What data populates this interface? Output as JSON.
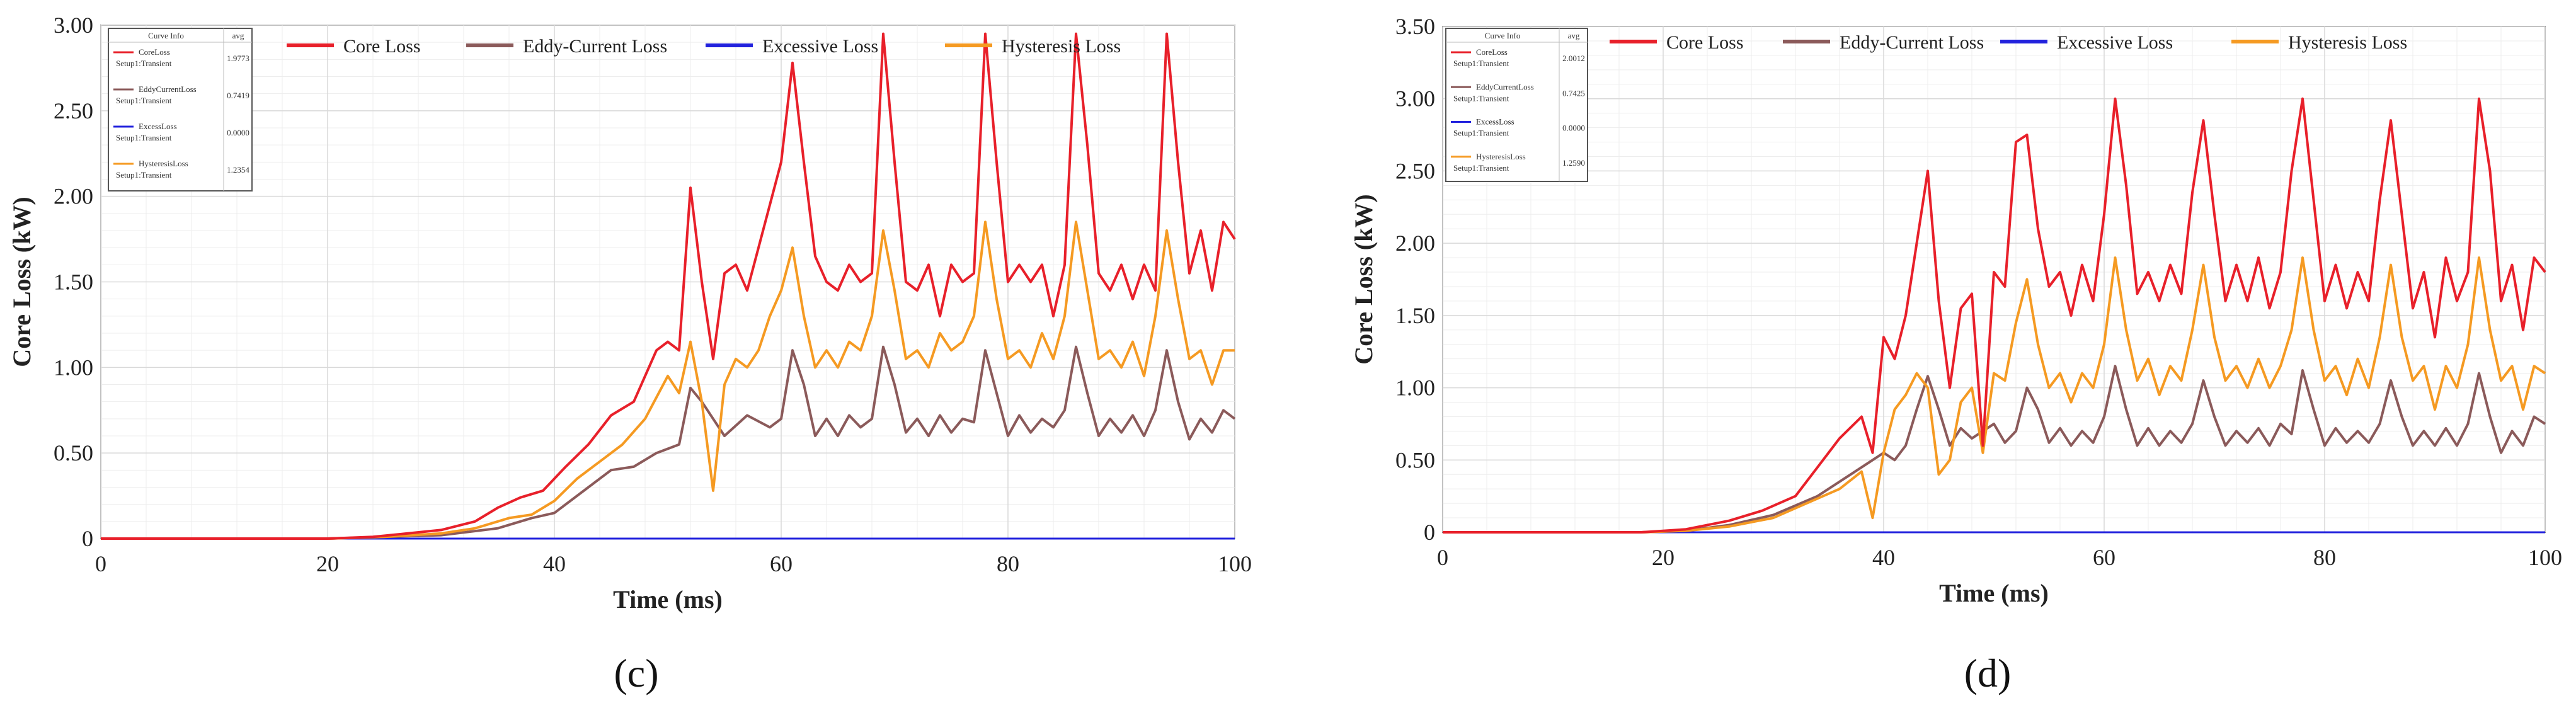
{
  "colors": {
    "core": "#e8202a",
    "eddy": "#8b5a5a",
    "excess": "#2222dd",
    "hyst": "#f59a22",
    "grid": "#d9d9d9",
    "axis": "#7a7a7a",
    "legend_border": "#555555"
  },
  "chart_data": [
    {
      "id": "c",
      "type": "line",
      "panel_label": "(c)",
      "xlabel": "Time (ms)",
      "ylabel": "Core Loss (kW)",
      "xlim": [
        0,
        100
      ],
      "ylim": [
        0,
        3.0
      ],
      "xticks": [
        0,
        20,
        40,
        60,
        80,
        100
      ],
      "yticks": [
        0,
        0.5,
        1.0,
        1.5,
        2.0,
        2.5,
        3.0
      ],
      "ytick_labels": [
        "0",
        "0.50",
        "1.00",
        "1.50",
        "2.00",
        "2.50",
        "3.00"
      ],
      "legend": [
        "Core Loss",
        "Eddy-Current Loss",
        "Excessive Loss",
        "Hysteresis Loss"
      ],
      "info_box": {
        "header": [
          "Curve Info",
          "avg"
        ],
        "rows": [
          {
            "name": "CoreLoss",
            "setup": "Setup1:Transient",
            "avg": "1.9773"
          },
          {
            "name": "EddyCurrentLoss",
            "setup": "Setup1:Transient",
            "avg": "0.7419"
          },
          {
            "name": "ExcessLoss",
            "setup": "Setup1:Transient",
            "avg": "0.0000"
          },
          {
            "name": "HysteresisLoss",
            "setup": "Setup1:Transient",
            "avg": "1.2354"
          }
        ]
      },
      "series": [
        {
          "name": "Core Loss",
          "key": "core",
          "x": [
            0,
            20,
            24,
            27,
            30,
            33,
            35,
            37,
            39,
            41,
            43,
            45,
            47,
            49,
            50,
            51,
            52,
            53,
            54,
            55,
            56,
            57,
            58,
            60,
            61,
            62,
            63,
            64,
            65,
            66,
            67,
            68,
            69,
            70,
            71,
            72,
            73,
            74,
            75,
            76,
            77,
            78,
            79,
            80,
            81,
            82,
            83,
            84,
            85,
            86,
            87,
            88,
            89,
            90,
            91,
            92,
            93,
            94,
            95,
            96,
            97,
            98,
            99,
            100
          ],
          "y": [
            0,
            0,
            0.01,
            0.03,
            0.05,
            0.1,
            0.18,
            0.24,
            0.28,
            0.42,
            0.55,
            0.72,
            0.8,
            1.1,
            1.15,
            1.1,
            2.05,
            1.5,
            1.05,
            1.55,
            1.6,
            1.45,
            1.7,
            2.2,
            2.78,
            2.2,
            1.65,
            1.5,
            1.45,
            1.6,
            1.5,
            1.55,
            2.95,
            2.2,
            1.5,
            1.45,
            1.6,
            1.3,
            1.6,
            1.5,
            1.55,
            2.95,
            2.2,
            1.5,
            1.6,
            1.5,
            1.6,
            1.3,
            1.6,
            2.95,
            2.3,
            1.55,
            1.45,
            1.6,
            1.4,
            1.6,
            1.45,
            2.95,
            2.2,
            1.55,
            1.8,
            1.45,
            1.85,
            1.75
          ]
        },
        {
          "name": "Eddy-Current Loss",
          "key": "eddy",
          "x": [
            0,
            20,
            25,
            30,
            35,
            38,
            40,
            43,
            45,
            47,
            49,
            51,
            52,
            53,
            55,
            57,
            59,
            60,
            61,
            62,
            63,
            64,
            65,
            66,
            67,
            68,
            69,
            70,
            71,
            72,
            73,
            74,
            75,
            76,
            77,
            78,
            79,
            80,
            81,
            82,
            83,
            84,
            85,
            86,
            87,
            88,
            89,
            90,
            91,
            92,
            93,
            94,
            95,
            96,
            97,
            98,
            99,
            100
          ],
          "y": [
            0,
            0,
            0.01,
            0.02,
            0.06,
            0.12,
            0.15,
            0.3,
            0.4,
            0.42,
            0.5,
            0.55,
            0.88,
            0.8,
            0.6,
            0.72,
            0.65,
            0.7,
            1.1,
            0.9,
            0.6,
            0.7,
            0.6,
            0.72,
            0.65,
            0.7,
            1.12,
            0.9,
            0.62,
            0.7,
            0.6,
            0.72,
            0.62,
            0.7,
            0.68,
            1.1,
            0.85,
            0.6,
            0.72,
            0.62,
            0.7,
            0.65,
            0.75,
            1.12,
            0.85,
            0.6,
            0.7,
            0.62,
            0.72,
            0.6,
            0.75,
            1.1,
            0.8,
            0.58,
            0.7,
            0.62,
            0.75,
            0.7
          ]
        },
        {
          "name": "Excessive Loss",
          "key": "excess",
          "x": [
            0,
            100
          ],
          "y": [
            0,
            0
          ]
        },
        {
          "name": "Hysteresis Loss",
          "key": "hyst",
          "x": [
            0,
            20,
            25,
            30,
            33,
            36,
            38,
            40,
            42,
            44,
            46,
            48,
            50,
            51,
            52,
            53,
            54,
            55,
            56,
            57,
            58,
            59,
            60,
            61,
            62,
            63,
            64,
            65,
            66,
            67,
            68,
            69,
            70,
            71,
            72,
            73,
            74,
            75,
            76,
            77,
            78,
            79,
            80,
            81,
            82,
            83,
            84,
            85,
            86,
            87,
            88,
            89,
            90,
            91,
            92,
            93,
            94,
            95,
            96,
            97,
            98,
            99,
            100
          ],
          "y": [
            0,
            0,
            0.01,
            0.03,
            0.06,
            0.12,
            0.14,
            0.22,
            0.35,
            0.45,
            0.55,
            0.7,
            0.95,
            0.85,
            1.15,
            0.8,
            0.28,
            0.9,
            1.05,
            1.0,
            1.1,
            1.3,
            1.45,
            1.7,
            1.3,
            1.0,
            1.1,
            1.0,
            1.15,
            1.1,
            1.3,
            1.8,
            1.45,
            1.05,
            1.1,
            1.0,
            1.2,
            1.1,
            1.15,
            1.3,
            1.85,
            1.4,
            1.05,
            1.1,
            1.0,
            1.2,
            1.05,
            1.3,
            1.85,
            1.45,
            1.05,
            1.1,
            1.0,
            1.15,
            0.95,
            1.3,
            1.8,
            1.4,
            1.05,
            1.1,
            0.9,
            1.1,
            1.1
          ]
        }
      ]
    },
    {
      "id": "d",
      "type": "line",
      "panel_label": "(d)",
      "xlabel": "Time (ms)",
      "ylabel": "Core Loss (kW)",
      "xlim": [
        0,
        100
      ],
      "ylim": [
        0,
        3.5
      ],
      "xticks": [
        0,
        20,
        40,
        60,
        80,
        100
      ],
      "yticks": [
        0,
        0.5,
        1.0,
        1.5,
        2.0,
        2.5,
        3.0,
        3.5
      ],
      "ytick_labels": [
        "0",
        "0.50",
        "1.00",
        "1.50",
        "2.00",
        "2.50",
        "3.00",
        "3.50"
      ],
      "legend": [
        "Core Loss",
        "Eddy-Current Loss",
        "Excessive Loss",
        "Hysteresis Loss"
      ],
      "info_box": {
        "header": [
          "Curve Info",
          "avg"
        ],
        "rows": [
          {
            "name": "CoreLoss",
            "setup": "Setup1:Transient",
            "avg": "2.0012"
          },
          {
            "name": "EddyCurrentLoss",
            "setup": "Setup1:Transient",
            "avg": "0.7425"
          },
          {
            "name": "ExcessLoss",
            "setup": "Setup1:Transient",
            "avg": "0.0000"
          },
          {
            "name": "HysteresisLoss",
            "setup": "Setup1:Transient",
            "avg": "1.2590"
          }
        ]
      },
      "series": [
        {
          "name": "Core Loss",
          "key": "core",
          "x": [
            0,
            18,
            22,
            26,
            29,
            32,
            34,
            36,
            38,
            39,
            40,
            41,
            42,
            43,
            44,
            45,
            46,
            47,
            48,
            49,
            50,
            51,
            52,
            53,
            54,
            55,
            56,
            57,
            58,
            59,
            60,
            61,
            62,
            63,
            64,
            65,
            66,
            67,
            68,
            69,
            70,
            71,
            72,
            73,
            74,
            75,
            76,
            77,
            78,
            79,
            80,
            81,
            82,
            83,
            84,
            85,
            86,
            87,
            88,
            89,
            90,
            91,
            92,
            93,
            94,
            95,
            96,
            97,
            98,
            99,
            100
          ],
          "y": [
            0,
            0,
            0.02,
            0.08,
            0.15,
            0.25,
            0.45,
            0.65,
            0.8,
            0.55,
            1.35,
            1.2,
            1.5,
            2.0,
            2.5,
            1.6,
            1.0,
            1.55,
            1.65,
            0.6,
            1.8,
            1.7,
            2.7,
            2.75,
            2.1,
            1.7,
            1.8,
            1.5,
            1.85,
            1.6,
            2.2,
            3.0,
            2.4,
            1.65,
            1.8,
            1.6,
            1.85,
            1.65,
            2.35,
            2.85,
            2.2,
            1.6,
            1.85,
            1.6,
            1.9,
            1.55,
            1.8,
            2.5,
            3.0,
            2.3,
            1.6,
            1.85,
            1.55,
            1.8,
            1.6,
            2.3,
            2.85,
            2.2,
            1.55,
            1.8,
            1.35,
            1.9,
            1.6,
            1.8,
            3.0,
            2.5,
            1.6,
            1.85,
            1.4,
            1.9,
            1.8
          ]
        },
        {
          "name": "Eddy-Current Loss",
          "key": "eddy",
          "x": [
            0,
            18,
            22,
            26,
            30,
            34,
            38,
            40,
            41,
            42,
            43,
            44,
            45,
            46,
            47,
            48,
            49,
            50,
            51,
            52,
            53,
            54,
            55,
            56,
            57,
            58,
            59,
            60,
            61,
            62,
            63,
            64,
            65,
            66,
            67,
            68,
            69,
            70,
            71,
            72,
            73,
            74,
            75,
            76,
            77,
            78,
            79,
            80,
            81,
            82,
            83,
            84,
            85,
            86,
            87,
            88,
            89,
            90,
            91,
            92,
            93,
            94,
            95,
            96,
            97,
            98,
            99,
            100
          ],
          "y": [
            0,
            0,
            0.01,
            0.05,
            0.12,
            0.25,
            0.45,
            0.55,
            0.5,
            0.6,
            0.85,
            1.08,
            0.85,
            0.6,
            0.72,
            0.65,
            0.7,
            0.75,
            0.62,
            0.7,
            1.0,
            0.85,
            0.62,
            0.72,
            0.6,
            0.7,
            0.62,
            0.8,
            1.15,
            0.85,
            0.6,
            0.72,
            0.6,
            0.7,
            0.62,
            0.75,
            1.05,
            0.8,
            0.6,
            0.7,
            0.62,
            0.72,
            0.6,
            0.75,
            0.68,
            1.12,
            0.85,
            0.6,
            0.72,
            0.62,
            0.7,
            0.62,
            0.75,
            1.05,
            0.8,
            0.6,
            0.7,
            0.6,
            0.72,
            0.6,
            0.75,
            1.1,
            0.8,
            0.55,
            0.7,
            0.6,
            0.8,
            0.75
          ]
        },
        {
          "name": "Excessive Loss",
          "key": "excess",
          "x": [
            0,
            100
          ],
          "y": [
            0,
            0
          ]
        },
        {
          "name": "Hysteresis Loss",
          "key": "hyst",
          "x": [
            0,
            18,
            22,
            26,
            30,
            33,
            36,
            38,
            39,
            40,
            41,
            42,
            43,
            44,
            45,
            46,
            47,
            48,
            49,
            50,
            51,
            52,
            53,
            54,
            55,
            56,
            57,
            58,
            59,
            60,
            61,
            62,
            63,
            64,
            65,
            66,
            67,
            68,
            69,
            70,
            71,
            72,
            73,
            74,
            75,
            76,
            77,
            78,
            79,
            80,
            81,
            82,
            83,
            84,
            85,
            86,
            87,
            88,
            89,
            90,
            91,
            92,
            93,
            94,
            95,
            96,
            97,
            98,
            99,
            100
          ],
          "y": [
            0,
            0,
            0.01,
            0.04,
            0.1,
            0.2,
            0.3,
            0.42,
            0.1,
            0.55,
            0.85,
            0.95,
            1.1,
            1.0,
            0.4,
            0.5,
            0.9,
            1.0,
            0.55,
            1.1,
            1.05,
            1.45,
            1.75,
            1.3,
            1.0,
            1.1,
            0.9,
            1.1,
            1.0,
            1.3,
            1.9,
            1.4,
            1.05,
            1.2,
            0.95,
            1.15,
            1.05,
            1.4,
            1.85,
            1.35,
            1.05,
            1.15,
            1.0,
            1.2,
            1.0,
            1.15,
            1.4,
            1.9,
            1.4,
            1.05,
            1.15,
            0.95,
            1.2,
            1.0,
            1.35,
            1.85,
            1.35,
            1.05,
            1.15,
            0.85,
            1.15,
            1.0,
            1.3,
            1.9,
            1.4,
            1.05,
            1.15,
            0.85,
            1.15,
            1.1
          ]
        }
      ]
    }
  ]
}
